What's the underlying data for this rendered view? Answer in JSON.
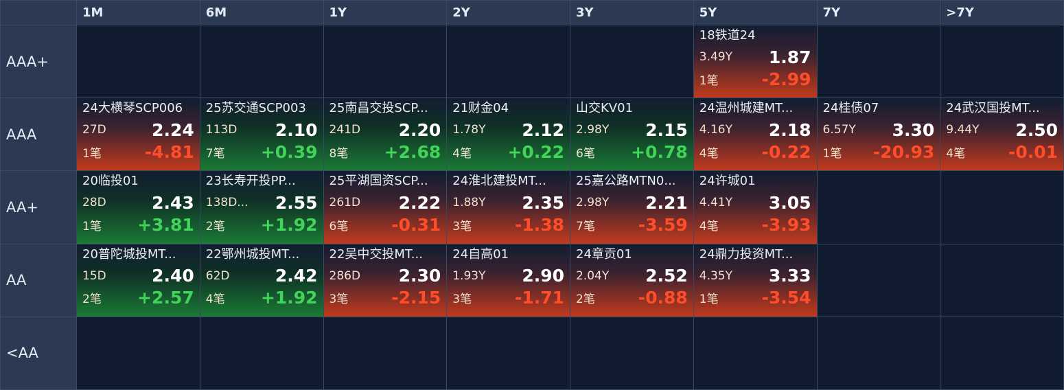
{
  "columns": [
    "1M",
    "6M",
    "1Y",
    "2Y",
    "3Y",
    "5Y",
    "7Y",
    ">7Y"
  ],
  "rows": [
    {
      "rating": "AAA+",
      "cells": [
        null,
        null,
        null,
        null,
        null,
        {
          "name": "18铁道24",
          "term": "3.49Y",
          "yield": "1.87",
          "count": "1笔",
          "change": "-2.99",
          "dir": "down"
        },
        null,
        null
      ]
    },
    {
      "rating": "AAA",
      "cells": [
        {
          "name": "24大横琴SCP006",
          "term": "27D",
          "yield": "2.24",
          "count": "1笔",
          "change": "-4.81",
          "dir": "down"
        },
        {
          "name": "25苏交通SCP003",
          "term": "113D",
          "yield": "2.10",
          "count": "7笔",
          "change": "+0.39",
          "dir": "up"
        },
        {
          "name": "25南昌交投SCP...",
          "term": "241D",
          "yield": "2.20",
          "count": "8笔",
          "change": "+2.68",
          "dir": "up"
        },
        {
          "name": "21财金04",
          "term": "1.78Y",
          "yield": "2.12",
          "count": "4笔",
          "change": "+0.22",
          "dir": "up"
        },
        {
          "name": "山交KV01",
          "term": "2.98Y",
          "yield": "2.15",
          "count": "6笔",
          "change": "+0.78",
          "dir": "up"
        },
        {
          "name": "24温州城建MT...",
          "term": "4.16Y",
          "yield": "2.18",
          "count": "4笔",
          "change": "-0.22",
          "dir": "down"
        },
        {
          "name": "24桂债07",
          "term": "6.57Y",
          "yield": "3.30",
          "count": "1笔",
          "change": "-20.93",
          "dir": "down"
        },
        {
          "name": "24武汉国投MT...",
          "term": "9.44Y",
          "yield": "2.50",
          "count": "4笔",
          "change": "-0.01",
          "dir": "down"
        }
      ]
    },
    {
      "rating": "AA+",
      "cells": [
        {
          "name": "20临投01",
          "term": "28D",
          "yield": "2.43",
          "count": "1笔",
          "change": "+3.81",
          "dir": "up"
        },
        {
          "name": "23长寿开投PP...",
          "term": "138D...",
          "yield": "2.55",
          "count": "2笔",
          "change": "+1.92",
          "dir": "up"
        },
        {
          "name": "25平湖国资SCP...",
          "term": "261D",
          "yield": "2.22",
          "count": "6笔",
          "change": "-0.31",
          "dir": "down"
        },
        {
          "name": "24淮北建投MT...",
          "term": "1.88Y",
          "yield": "2.35",
          "count": "3笔",
          "change": "-1.38",
          "dir": "down"
        },
        {
          "name": "25嘉公路MTN0...",
          "term": "2.98Y",
          "yield": "2.21",
          "count": "7笔",
          "change": "-3.59",
          "dir": "down"
        },
        {
          "name": "24许城01",
          "term": "4.41Y",
          "yield": "3.05",
          "count": "4笔",
          "change": "-3.93",
          "dir": "down"
        },
        null,
        null
      ]
    },
    {
      "rating": "AA",
      "cells": [
        {
          "name": "20普陀城投MT...",
          "term": "15D",
          "yield": "2.40",
          "count": "2笔",
          "change": "+2.57",
          "dir": "up"
        },
        {
          "name": "22鄂州城投MT...",
          "term": "62D",
          "yield": "2.42",
          "count": "4笔",
          "change": "+1.92",
          "dir": "up"
        },
        {
          "name": "22吴中交投MT...",
          "term": "286D",
          "yield": "2.30",
          "count": "3笔",
          "change": "-2.15",
          "dir": "down"
        },
        {
          "name": "24自高01",
          "term": "1.93Y",
          "yield": "2.90",
          "count": "3笔",
          "change": "-1.71",
          "dir": "down"
        },
        {
          "name": "24章贡01",
          "term": "2.04Y",
          "yield": "2.52",
          "count": "2笔",
          "change": "-0.88",
          "dir": "down"
        },
        {
          "name": "24鼎力投资MT...",
          "term": "4.35Y",
          "yield": "3.33",
          "count": "1笔",
          "change": "-3.54",
          "dir": "down"
        },
        null,
        null
      ]
    },
    {
      "rating": "<AA",
      "cells": [
        null,
        null,
        null,
        null,
        null,
        null,
        null,
        null
      ]
    }
  ]
}
